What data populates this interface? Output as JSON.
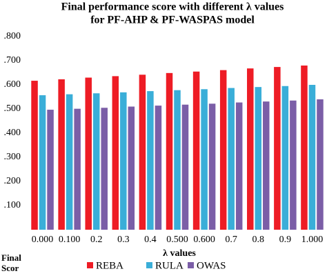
{
  "chart_data": {
    "type": "bar",
    "title": "Final performance score with different λ values",
    "subtitle": "for PF-AHP & PF-WASPAS model",
    "x_label": "λ values",
    "y_label": "Final Scor",
    "categories": [
      "0.000",
      "0.100",
      "0.2",
      "0.3",
      "0.4",
      "0.500",
      "0.600",
      "0.7",
      "0.8",
      "0.9",
      "1.000"
    ],
    "series": [
      {
        "name": "REBA",
        "color": "#ee1c25",
        "values": [
          0.617,
          0.623,
          0.63,
          0.636,
          0.642,
          0.649,
          0.655,
          0.661,
          0.668,
          0.674,
          0.68
        ]
      },
      {
        "name": "RULA",
        "color": "#3aaed8",
        "values": [
          0.557,
          0.561,
          0.565,
          0.569,
          0.574,
          0.578,
          0.582,
          0.587,
          0.591,
          0.595,
          0.6
        ]
      },
      {
        "name": "OWAS",
        "color": "#7b5ea7",
        "values": [
          0.497,
          0.501,
          0.505,
          0.51,
          0.514,
          0.518,
          0.522,
          0.527,
          0.531,
          0.535,
          0.54
        ]
      }
    ],
    "ylim": [
      0,
      0.8
    ],
    "yticks": [
      {
        "value": 0.1,
        "label": ".100"
      },
      {
        "value": 0.2,
        "label": ".200"
      },
      {
        "value": 0.3,
        "label": ".300"
      },
      {
        "value": 0.4,
        "label": ".400"
      },
      {
        "value": 0.5,
        "label": ".500"
      },
      {
        "value": 0.6,
        "label": ".600"
      },
      {
        "value": 0.7,
        "label": ".700"
      },
      {
        "value": 0.8,
        "label": ".800"
      }
    ],
    "grid": false
  }
}
